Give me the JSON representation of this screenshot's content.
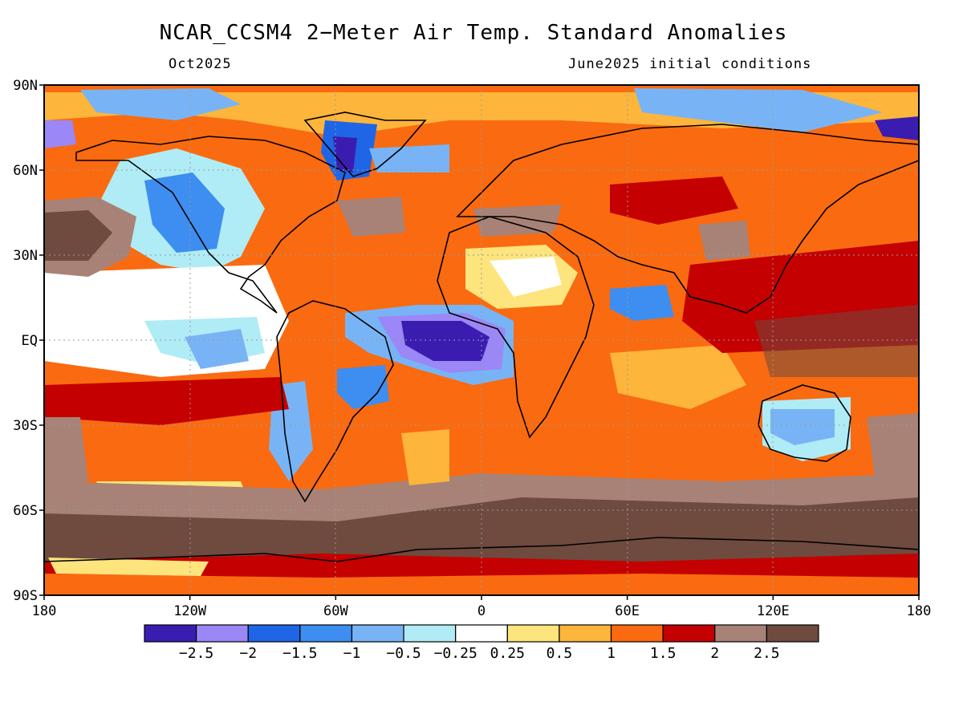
{
  "title": "NCAR_CCSM4 2−Meter Air Temp. Standard Anomalies",
  "subtitle_left": "Oct2025",
  "subtitle_right": "June2025 initial conditions",
  "lat_ticks": [
    "90N",
    "60N",
    "30N",
    "EQ",
    "30S",
    "60S",
    "90S"
  ],
  "lon_ticks": [
    "180",
    "120W",
    "60W",
    "0",
    "60E",
    "120E",
    "180"
  ],
  "colorbar": {
    "colors": [
      "#3a1db0",
      "#9b87f5",
      "#1f66e6",
      "#3d8ef0",
      "#78b4f5",
      "#b0ecf5",
      "#ffffff",
      "#fde47d",
      "#fdb53b",
      "#fa6a10",
      "#c40000",
      "#a88276",
      "#6e4a3f"
    ],
    "labels": [
      "−2.5",
      "−2",
      "−1.5",
      "−1",
      "−0.5",
      "−0.25",
      "0.25",
      "0.5",
      "1",
      "1.5",
      "2",
      "2.5"
    ]
  }
}
